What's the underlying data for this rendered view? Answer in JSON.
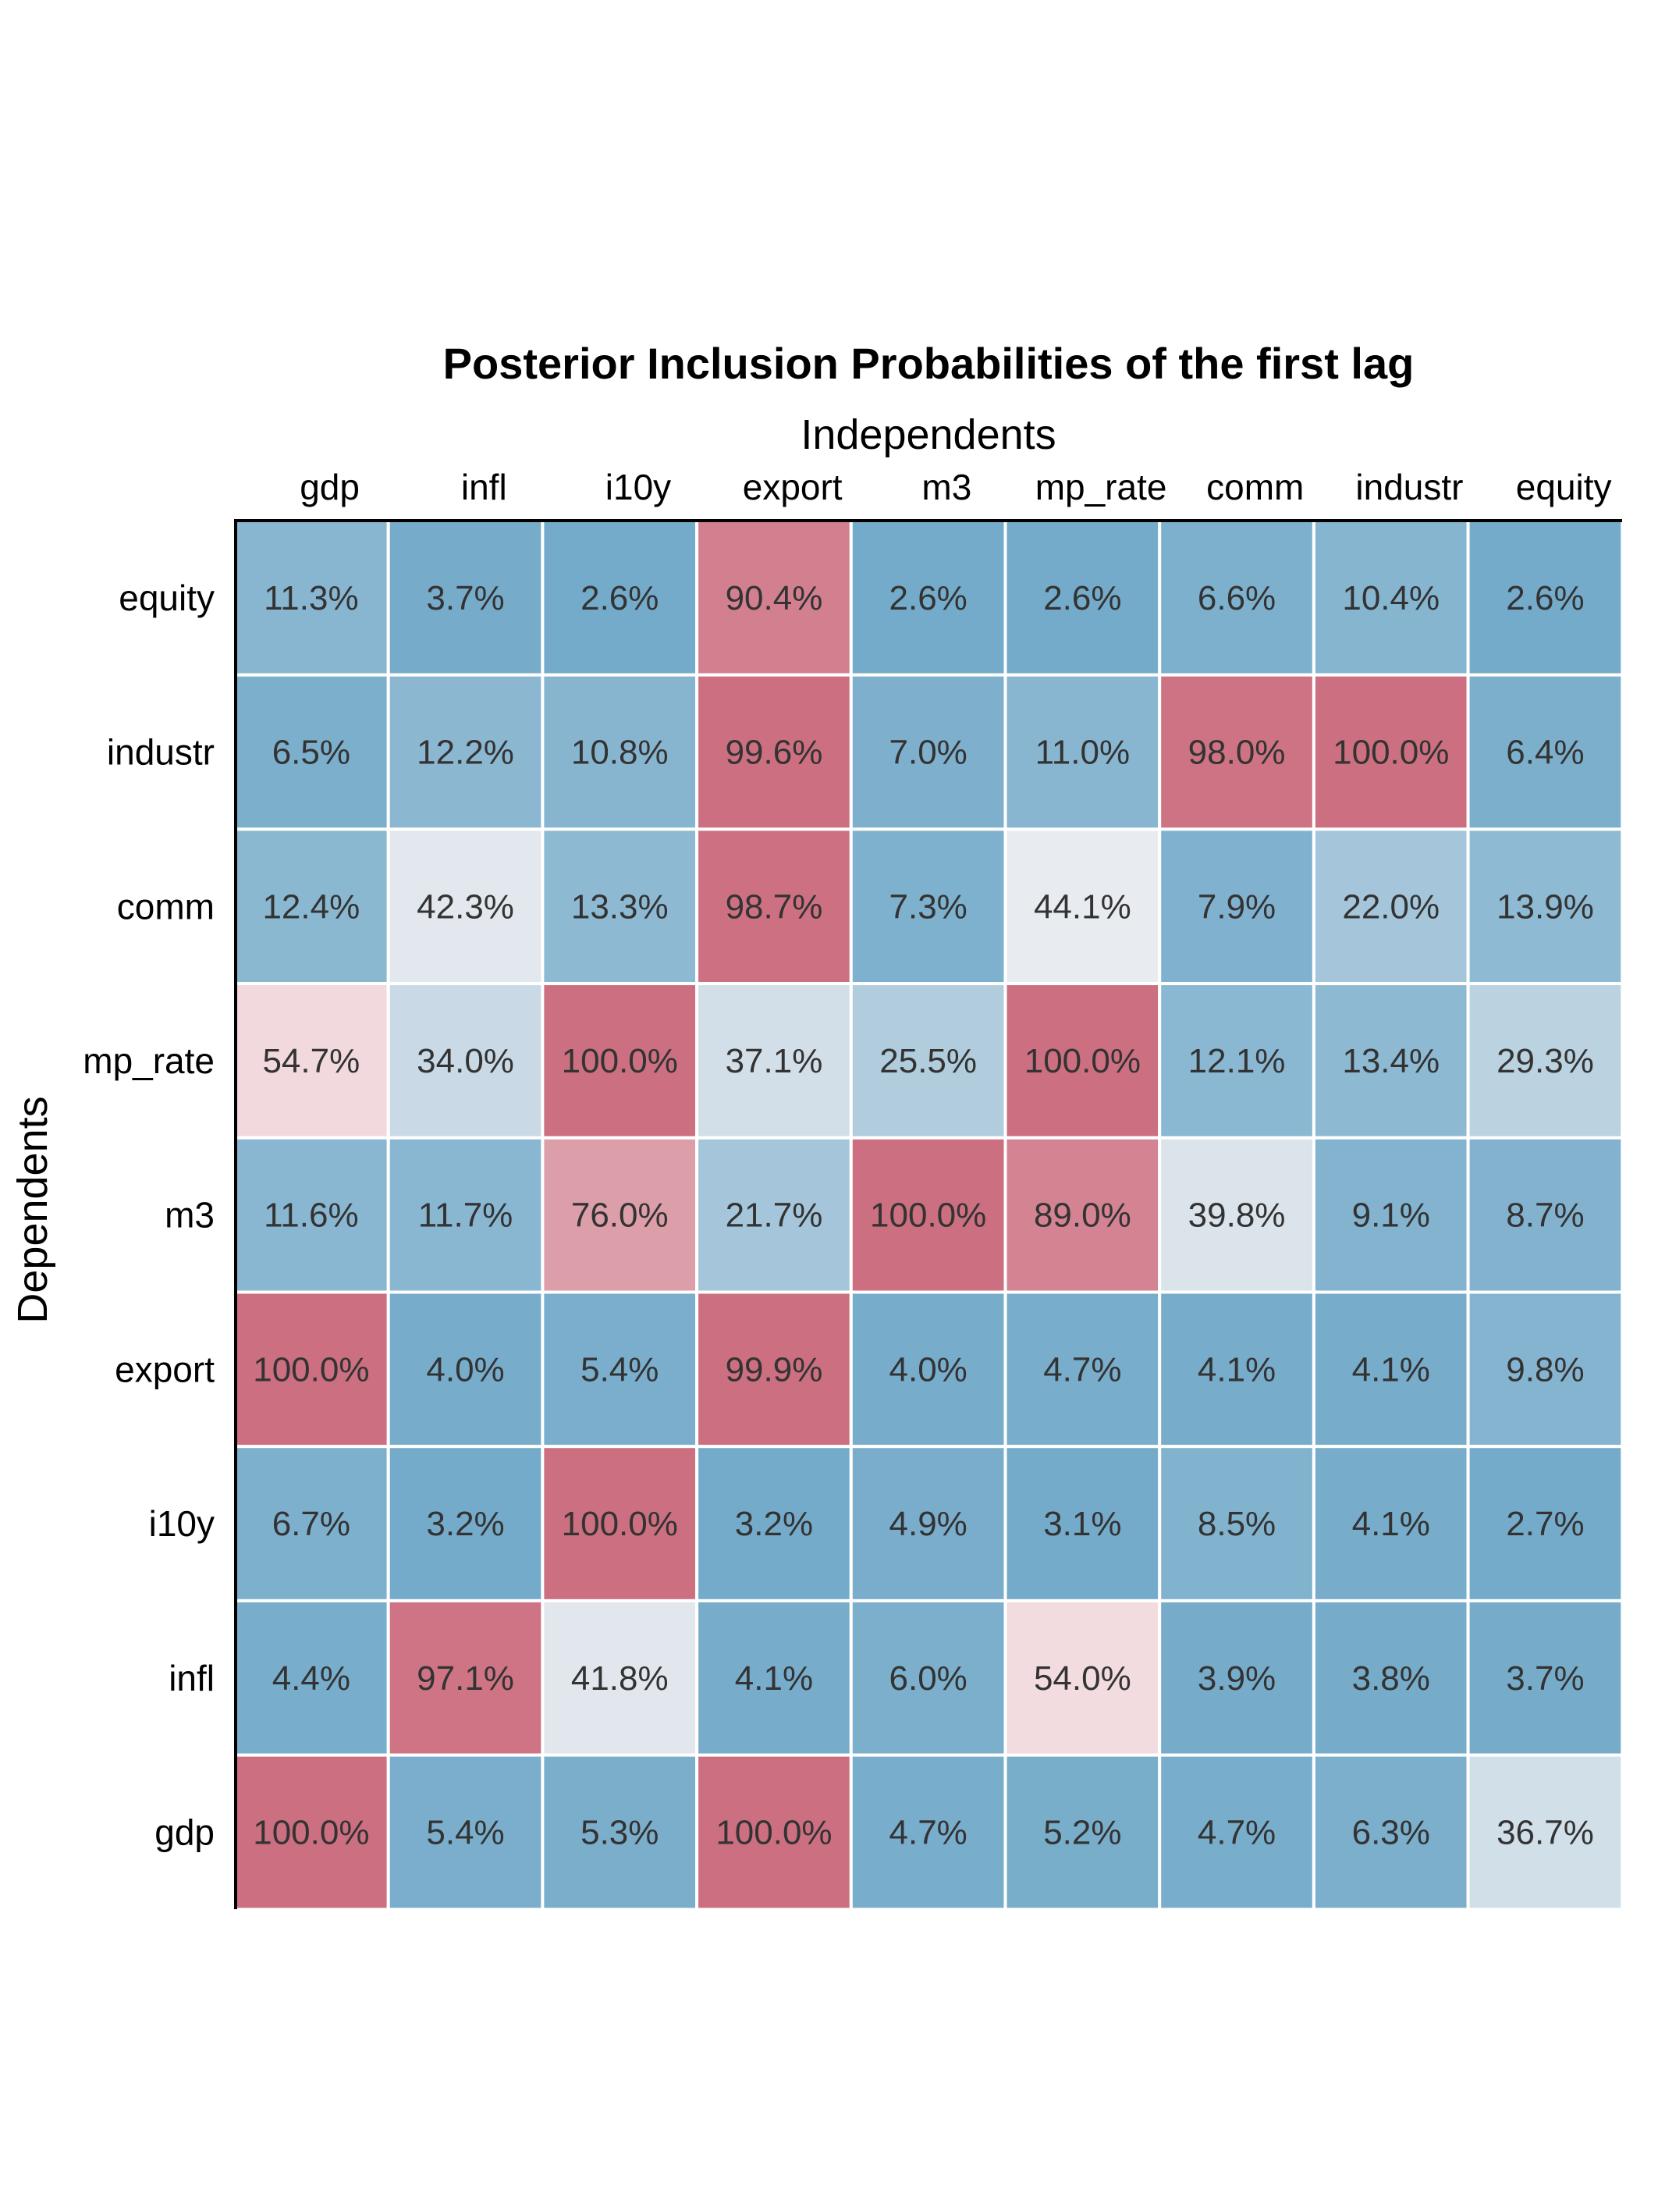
{
  "chart_data": {
    "type": "heatmap",
    "title": "Posterior Inclusion Probabilities of the first lag",
    "xlabel": "Independents",
    "ylabel": "Dependents",
    "x_categories": [
      "gdp",
      "infl",
      "i10y",
      "export",
      "m3",
      "mp_rate",
      "comm",
      "industr",
      "equity"
    ],
    "y_categories": [
      "equity",
      "industr",
      "comm",
      "mp_rate",
      "m3",
      "export",
      "i10y",
      "infl",
      "gdp"
    ],
    "value_format": "percent",
    "color_scale": {
      "low": "#6fa8c8",
      "mid": "#fbf6f6",
      "high": "#cc6f80",
      "midpoint": 0.5
    },
    "values": [
      [
        11.3,
        3.7,
        2.6,
        90.4,
        2.6,
        2.6,
        6.6,
        10.4,
        2.6
      ],
      [
        6.5,
        12.2,
        10.8,
        99.6,
        7.0,
        11.0,
        98.0,
        100.0,
        6.4
      ],
      [
        12.4,
        42.3,
        13.3,
        98.7,
        7.3,
        44.1,
        7.9,
        22.0,
        13.9
      ],
      [
        54.7,
        34.0,
        100.0,
        37.1,
        25.5,
        100.0,
        12.1,
        13.4,
        29.3
      ],
      [
        11.6,
        11.7,
        76.0,
        21.7,
        100.0,
        89.0,
        39.8,
        9.1,
        8.7
      ],
      [
        100.0,
        4.0,
        5.4,
        99.9,
        4.0,
        4.7,
        4.1,
        4.1,
        9.8
      ],
      [
        6.7,
        3.2,
        100.0,
        3.2,
        4.9,
        3.1,
        8.5,
        4.1,
        2.7
      ],
      [
        4.4,
        97.1,
        41.8,
        4.1,
        6.0,
        54.0,
        3.9,
        3.8,
        3.7
      ],
      [
        100.0,
        5.4,
        5.3,
        100.0,
        4.7,
        5.2,
        4.7,
        6.3,
        36.7
      ]
    ],
    "labels": [
      [
        "11.3%",
        "3.7%",
        "2.6%",
        "90.4%",
        "2.6%",
        "2.6%",
        "6.6%",
        "10.4%",
        "2.6%"
      ],
      [
        "6.5%",
        "12.2%",
        "10.8%",
        "99.6%",
        "7.0%",
        "11.0%",
        "98.0%",
        "100.0%",
        "6.4%"
      ],
      [
        "12.4%",
        "42.3%",
        "13.3%",
        "98.7%",
        "7.3%",
        "44.1%",
        "7.9%",
        "22.0%",
        "13.9%"
      ],
      [
        "54.7%",
        "34.0%",
        "100.0%",
        "37.1%",
        "25.5%",
        "100.0%",
        "12.1%",
        "13.4%",
        "29.3%"
      ],
      [
        "11.6%",
        "11.7%",
        "76.0%",
        "21.7%",
        "100.0%",
        "89.0%",
        "39.8%",
        "9.1%",
        "8.7%"
      ],
      [
        "100.0%",
        "4.0%",
        "5.4%",
        "99.9%",
        "4.0%",
        "4.7%",
        "4.1%",
        "4.1%",
        "9.8%"
      ],
      [
        "6.7%",
        "3.2%",
        "100.0%",
        "3.2%",
        "4.9%",
        "3.1%",
        "8.5%",
        "4.1%",
        "2.7%"
      ],
      [
        "4.4%",
        "97.1%",
        "41.8%",
        "4.1%",
        "6.0%",
        "54.0%",
        "3.9%",
        "3.8%",
        "3.7%"
      ],
      [
        "100.0%",
        "5.4%",
        "5.3%",
        "100.0%",
        "4.7%",
        "5.2%",
        "4.7%",
        "6.3%",
        "36.7%"
      ]
    ],
    "legend": "none",
    "grid": false
  }
}
